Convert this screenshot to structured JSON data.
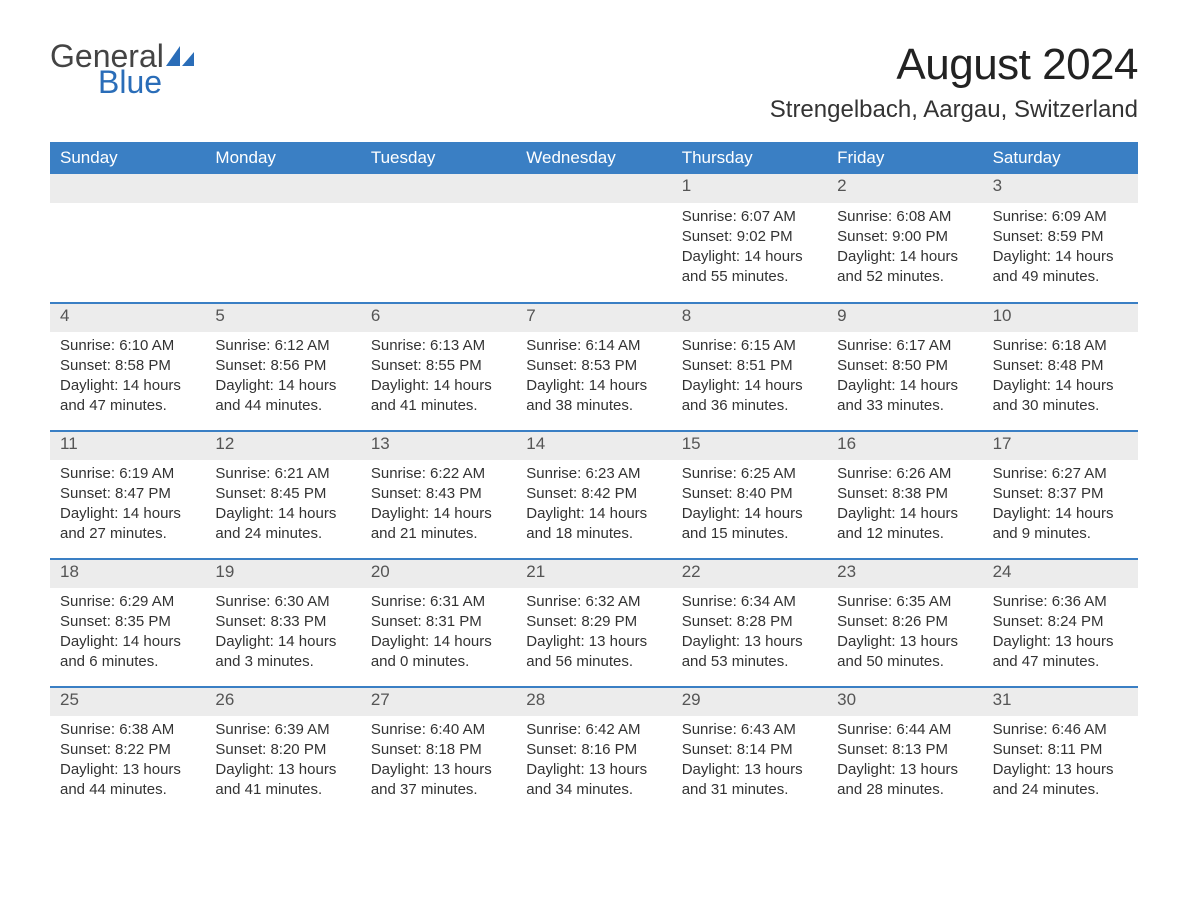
{
  "logo": {
    "text_general": "General",
    "text_blue": "Blue",
    "sail_color": "#2a6db8"
  },
  "header": {
    "month_title": "August 2024",
    "location": "Strengelbach, Aargau, Switzerland"
  },
  "colors": {
    "header_bg": "#3a7fc4",
    "header_text": "#ffffff",
    "daynum_bg": "#ececec",
    "daynum_text": "#555555",
    "body_text": "#333333",
    "week_border": "#3a7fc4",
    "page_bg": "#ffffff"
  },
  "typography": {
    "month_title_fontsize": 44,
    "location_fontsize": 24,
    "weekday_fontsize": 17,
    "daynum_fontsize": 17,
    "cell_fontsize": 15
  },
  "weekdays": [
    "Sunday",
    "Monday",
    "Tuesday",
    "Wednesday",
    "Thursday",
    "Friday",
    "Saturday"
  ],
  "weeks": [
    [
      null,
      null,
      null,
      null,
      {
        "day": "1",
        "sunrise": "Sunrise: 6:07 AM",
        "sunset": "Sunset: 9:02 PM",
        "daylight1": "Daylight: 14 hours",
        "daylight2": "and 55 minutes."
      },
      {
        "day": "2",
        "sunrise": "Sunrise: 6:08 AM",
        "sunset": "Sunset: 9:00 PM",
        "daylight1": "Daylight: 14 hours",
        "daylight2": "and 52 minutes."
      },
      {
        "day": "3",
        "sunrise": "Sunrise: 6:09 AM",
        "sunset": "Sunset: 8:59 PM",
        "daylight1": "Daylight: 14 hours",
        "daylight2": "and 49 minutes."
      }
    ],
    [
      {
        "day": "4",
        "sunrise": "Sunrise: 6:10 AM",
        "sunset": "Sunset: 8:58 PM",
        "daylight1": "Daylight: 14 hours",
        "daylight2": "and 47 minutes."
      },
      {
        "day": "5",
        "sunrise": "Sunrise: 6:12 AM",
        "sunset": "Sunset: 8:56 PM",
        "daylight1": "Daylight: 14 hours",
        "daylight2": "and 44 minutes."
      },
      {
        "day": "6",
        "sunrise": "Sunrise: 6:13 AM",
        "sunset": "Sunset: 8:55 PM",
        "daylight1": "Daylight: 14 hours",
        "daylight2": "and 41 minutes."
      },
      {
        "day": "7",
        "sunrise": "Sunrise: 6:14 AM",
        "sunset": "Sunset: 8:53 PM",
        "daylight1": "Daylight: 14 hours",
        "daylight2": "and 38 minutes."
      },
      {
        "day": "8",
        "sunrise": "Sunrise: 6:15 AM",
        "sunset": "Sunset: 8:51 PM",
        "daylight1": "Daylight: 14 hours",
        "daylight2": "and 36 minutes."
      },
      {
        "day": "9",
        "sunrise": "Sunrise: 6:17 AM",
        "sunset": "Sunset: 8:50 PM",
        "daylight1": "Daylight: 14 hours",
        "daylight2": "and 33 minutes."
      },
      {
        "day": "10",
        "sunrise": "Sunrise: 6:18 AM",
        "sunset": "Sunset: 8:48 PM",
        "daylight1": "Daylight: 14 hours",
        "daylight2": "and 30 minutes."
      }
    ],
    [
      {
        "day": "11",
        "sunrise": "Sunrise: 6:19 AM",
        "sunset": "Sunset: 8:47 PM",
        "daylight1": "Daylight: 14 hours",
        "daylight2": "and 27 minutes."
      },
      {
        "day": "12",
        "sunrise": "Sunrise: 6:21 AM",
        "sunset": "Sunset: 8:45 PM",
        "daylight1": "Daylight: 14 hours",
        "daylight2": "and 24 minutes."
      },
      {
        "day": "13",
        "sunrise": "Sunrise: 6:22 AM",
        "sunset": "Sunset: 8:43 PM",
        "daylight1": "Daylight: 14 hours",
        "daylight2": "and 21 minutes."
      },
      {
        "day": "14",
        "sunrise": "Sunrise: 6:23 AM",
        "sunset": "Sunset: 8:42 PM",
        "daylight1": "Daylight: 14 hours",
        "daylight2": "and 18 minutes."
      },
      {
        "day": "15",
        "sunrise": "Sunrise: 6:25 AM",
        "sunset": "Sunset: 8:40 PM",
        "daylight1": "Daylight: 14 hours",
        "daylight2": "and 15 minutes."
      },
      {
        "day": "16",
        "sunrise": "Sunrise: 6:26 AM",
        "sunset": "Sunset: 8:38 PM",
        "daylight1": "Daylight: 14 hours",
        "daylight2": "and 12 minutes."
      },
      {
        "day": "17",
        "sunrise": "Sunrise: 6:27 AM",
        "sunset": "Sunset: 8:37 PM",
        "daylight1": "Daylight: 14 hours",
        "daylight2": "and 9 minutes."
      }
    ],
    [
      {
        "day": "18",
        "sunrise": "Sunrise: 6:29 AM",
        "sunset": "Sunset: 8:35 PM",
        "daylight1": "Daylight: 14 hours",
        "daylight2": "and 6 minutes."
      },
      {
        "day": "19",
        "sunrise": "Sunrise: 6:30 AM",
        "sunset": "Sunset: 8:33 PM",
        "daylight1": "Daylight: 14 hours",
        "daylight2": "and 3 minutes."
      },
      {
        "day": "20",
        "sunrise": "Sunrise: 6:31 AM",
        "sunset": "Sunset: 8:31 PM",
        "daylight1": "Daylight: 14 hours",
        "daylight2": "and 0 minutes."
      },
      {
        "day": "21",
        "sunrise": "Sunrise: 6:32 AM",
        "sunset": "Sunset: 8:29 PM",
        "daylight1": "Daylight: 13 hours",
        "daylight2": "and 56 minutes."
      },
      {
        "day": "22",
        "sunrise": "Sunrise: 6:34 AM",
        "sunset": "Sunset: 8:28 PM",
        "daylight1": "Daylight: 13 hours",
        "daylight2": "and 53 minutes."
      },
      {
        "day": "23",
        "sunrise": "Sunrise: 6:35 AM",
        "sunset": "Sunset: 8:26 PM",
        "daylight1": "Daylight: 13 hours",
        "daylight2": "and 50 minutes."
      },
      {
        "day": "24",
        "sunrise": "Sunrise: 6:36 AM",
        "sunset": "Sunset: 8:24 PM",
        "daylight1": "Daylight: 13 hours",
        "daylight2": "and 47 minutes."
      }
    ],
    [
      {
        "day": "25",
        "sunrise": "Sunrise: 6:38 AM",
        "sunset": "Sunset: 8:22 PM",
        "daylight1": "Daylight: 13 hours",
        "daylight2": "and 44 minutes."
      },
      {
        "day": "26",
        "sunrise": "Sunrise: 6:39 AM",
        "sunset": "Sunset: 8:20 PM",
        "daylight1": "Daylight: 13 hours",
        "daylight2": "and 41 minutes."
      },
      {
        "day": "27",
        "sunrise": "Sunrise: 6:40 AM",
        "sunset": "Sunset: 8:18 PM",
        "daylight1": "Daylight: 13 hours",
        "daylight2": "and 37 minutes."
      },
      {
        "day": "28",
        "sunrise": "Sunrise: 6:42 AM",
        "sunset": "Sunset: 8:16 PM",
        "daylight1": "Daylight: 13 hours",
        "daylight2": "and 34 minutes."
      },
      {
        "day": "29",
        "sunrise": "Sunrise: 6:43 AM",
        "sunset": "Sunset: 8:14 PM",
        "daylight1": "Daylight: 13 hours",
        "daylight2": "and 31 minutes."
      },
      {
        "day": "30",
        "sunrise": "Sunrise: 6:44 AM",
        "sunset": "Sunset: 8:13 PM",
        "daylight1": "Daylight: 13 hours",
        "daylight2": "and 28 minutes."
      },
      {
        "day": "31",
        "sunrise": "Sunrise: 6:46 AM",
        "sunset": "Sunset: 8:11 PM",
        "daylight1": "Daylight: 13 hours",
        "daylight2": "and 24 minutes."
      }
    ]
  ]
}
